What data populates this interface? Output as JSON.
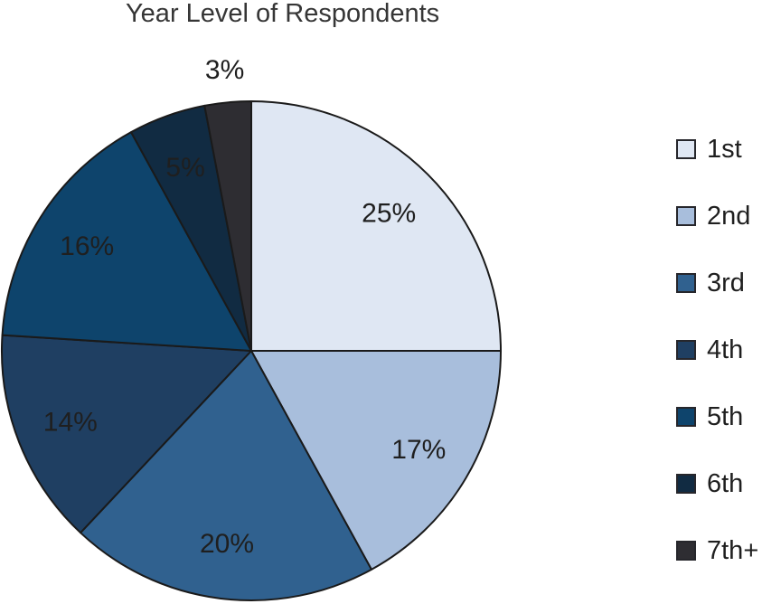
{
  "chart_data": {
    "type": "pie",
    "title": "Year Level of Respondents",
    "direction": "clockwise",
    "start_angle_deg": 0,
    "legend_position": "right",
    "grid": false,
    "stroke_color": "#1a1a1a",
    "stroke_width": 2,
    "value_label_color": "#1f1f1f",
    "slices": [
      {
        "label": "1st",
        "value": 25,
        "display": "25%",
        "color": "#dfe7f3"
      },
      {
        "label": "2nd",
        "value": 17,
        "display": "17%",
        "color": "#a8bedc"
      },
      {
        "label": "3rd",
        "value": 20,
        "display": "20%",
        "color": "#30618f"
      },
      {
        "label": "4th",
        "value": 14,
        "display": "14%",
        "color": "#1f3f62"
      },
      {
        "label": "5th",
        "value": 16,
        "display": "16%",
        "color": "#0e446c"
      },
      {
        "label": "6th",
        "value": 5,
        "display": "5%",
        "color": "#112b42"
      },
      {
        "label": "7th+",
        "value": 3,
        "display": "3%",
        "color": "#2e2d32",
        "label_outside": true
      }
    ]
  }
}
